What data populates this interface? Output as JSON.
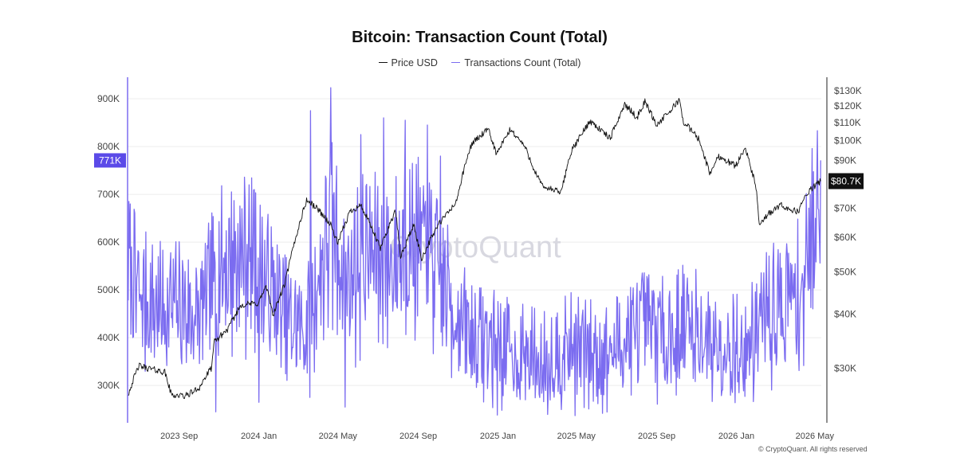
{
  "chart_data": {
    "type": "line",
    "title": "Bitcoin: Transaction Count (Total)",
    "legend": {
      "position": "top-center"
    },
    "series": [
      {
        "name": "Price USD",
        "axis": "right",
        "color": "#111111",
        "points": [
          [
            "2023-06-15",
            26200
          ],
          [
            "2023-07-01",
            30400
          ],
          [
            "2023-07-20",
            29900
          ],
          [
            "2023-08-10",
            29400
          ],
          [
            "2023-08-20",
            26100
          ],
          [
            "2023-09-10",
            25900
          ],
          [
            "2023-10-01",
            27000
          ],
          [
            "2023-10-20",
            30000
          ],
          [
            "2023-10-25",
            34500
          ],
          [
            "2023-11-15",
            37000
          ],
          [
            "2023-12-05",
            42000
          ],
          [
            "2023-12-31",
            42300
          ],
          [
            "2024-01-12",
            46200
          ],
          [
            "2024-01-23",
            39800
          ],
          [
            "2024-02-10",
            47000
          ],
          [
            "2024-02-28",
            61000
          ],
          [
            "2024-03-14",
            73000
          ],
          [
            "2024-04-01",
            69500
          ],
          [
            "2024-04-20",
            64000
          ],
          [
            "2024-05-01",
            58000
          ],
          [
            "2024-05-20",
            69000
          ],
          [
            "2024-06-05",
            71000
          ],
          [
            "2024-07-05",
            56500
          ],
          [
            "2024-07-28",
            69000
          ],
          [
            "2024-08-05",
            54000
          ],
          [
            "2024-08-25",
            64000
          ],
          [
            "2024-09-06",
            53500
          ],
          [
            "2024-09-30",
            63500
          ],
          [
            "2024-10-29",
            72000
          ],
          [
            "2024-11-12",
            88000
          ],
          [
            "2024-11-22",
            98500
          ],
          [
            "2024-12-17",
            106000
          ],
          [
            "2024-12-30",
            93000
          ],
          [
            "2025-01-20",
            106000
          ],
          [
            "2025-02-10",
            97500
          ],
          [
            "2025-02-28",
            84000
          ],
          [
            "2025-03-10",
            78500
          ],
          [
            "2025-04-08",
            76000
          ],
          [
            "2025-04-22",
            93500
          ],
          [
            "2025-05-22",
            111000
          ],
          [
            "2025-06-22",
            101000
          ],
          [
            "2025-07-14",
            121000
          ],
          [
            "2025-08-02",
            113000
          ],
          [
            "2025-08-14",
            123000
          ],
          [
            "2025-09-01",
            108500
          ],
          [
            "2025-09-20",
            116000
          ],
          [
            "2025-10-06",
            124500
          ],
          [
            "2025-10-11",
            111000
          ],
          [
            "2025-11-04",
            101000
          ],
          [
            "2025-11-21",
            84000
          ],
          [
            "2025-12-05",
            92000
          ],
          [
            "2025-12-31",
            87500
          ],
          [
            "2026-01-14",
            96500
          ],
          [
            "2026-02-01",
            77000
          ],
          [
            "2026-02-05",
            63500
          ],
          [
            "2026-02-20",
            68000
          ],
          [
            "2026-03-10",
            71000
          ],
          [
            "2026-04-05",
            68500
          ],
          [
            "2026-04-20",
            76000
          ],
          [
            "2026-05-10",
            80700
          ]
        ]
      },
      {
        "name": "Transactions Count (Total)",
        "axis": "left",
        "color": "#7b6cf0",
        "start": "2023-06-15",
        "end": "2026-05-10",
        "points": [
          [
            "2023-06-15",
            560000
          ],
          [
            "2023-07-01",
            500000
          ],
          [
            "2023-08-01",
            470000
          ],
          [
            "2023-09-01",
            480000
          ],
          [
            "2023-10-01",
            450000
          ],
          [
            "2023-11-01",
            560000
          ],
          [
            "2023-12-15",
            590000
          ],
          [
            "2024-01-15",
            520000
          ],
          [
            "2024-02-15",
            440000
          ],
          [
            "2024-03-15",
            430000
          ],
          [
            "2024-04-20",
            650000
          ],
          [
            "2024-05-15",
            540000
          ],
          [
            "2024-06-15",
            600000
          ],
          [
            "2024-07-15",
            560000
          ],
          [
            "2024-08-15",
            620000
          ],
          [
            "2024-09-15",
            600000
          ],
          [
            "2024-10-15",
            500000
          ],
          [
            "2024-11-15",
            420000
          ],
          [
            "2024-12-15",
            400000
          ],
          [
            "2025-01-15",
            380000
          ],
          [
            "2025-02-15",
            370000
          ],
          [
            "2025-03-15",
            360000
          ],
          [
            "2025-04-15",
            390000
          ],
          [
            "2025-05-15",
            380000
          ],
          [
            "2025-06-15",
            370000
          ],
          [
            "2025-07-15",
            410000
          ],
          [
            "2025-08-15",
            430000
          ],
          [
            "2025-09-15",
            420000
          ],
          [
            "2025-10-15",
            440000
          ],
          [
            "2025-11-15",
            410000
          ],
          [
            "2025-12-15",
            400000
          ],
          [
            "2026-01-15",
            380000
          ],
          [
            "2026-02-15",
            460000
          ],
          [
            "2026-03-15",
            480000
          ],
          [
            "2026-04-15",
            520000
          ],
          [
            "2026-05-10",
            771000
          ]
        ],
        "peaks": [
          [
            "2024-04-20",
            923000
          ],
          [
            "2024-07-10",
            860000
          ],
          [
            "2024-08-12",
            855000
          ],
          [
            "2024-03-20",
            875000
          ],
          [
            "2024-06-05",
            825000
          ],
          [
            "2024-09-15",
            845000
          ],
          [
            "2024-10-05",
            780000
          ],
          [
            "2023-12-25",
            710000
          ],
          [
            "2026-05-05",
            833000
          ],
          [
            "2023-06-20",
            590000
          ]
        ],
        "troughs": [
          [
            "2024-01-01",
            265000
          ],
          [
            "2024-05-12",
            255000
          ],
          [
            "2025-03-06",
            275000
          ],
          [
            "2025-06-03",
            262000
          ],
          [
            "2025-07-24",
            280000
          ],
          [
            "2025-10-01",
            280000
          ],
          [
            "2023-10-27",
            245000
          ],
          [
            "2026-01-05",
            285000
          ]
        ]
      }
    ],
    "left_axis": {
      "range": [
        222000,
        940000
      ],
      "ticks": [
        {
          "value": 300000,
          "label": "300K"
        },
        {
          "value": 400000,
          "label": "400K"
        },
        {
          "value": 500000,
          "label": "500K"
        },
        {
          "value": 600000,
          "label": "600K"
        },
        {
          "value": 700000,
          "label": "700K"
        },
        {
          "value": 800000,
          "label": "800K"
        },
        {
          "value": 900000,
          "label": "900K"
        }
      ],
      "current_label": "771K",
      "current_value": 771000,
      "current_color": "#5b4ae8"
    },
    "right_axis": {
      "scale": "log",
      "range": [
        22500,
        138000
      ],
      "ticks": [
        {
          "value": 30000,
          "label": "$30K"
        },
        {
          "value": 40000,
          "label": "$40K"
        },
        {
          "value": 50000,
          "label": "$50K"
        },
        {
          "value": 60000,
          "label": "$60K"
        },
        {
          "value": 70000,
          "label": "$70K"
        },
        {
          "value": 90000,
          "label": "$90K"
        },
        {
          "value": 100000,
          "label": "$100K"
        },
        {
          "value": 110000,
          "label": "$110K"
        },
        {
          "value": 120000,
          "label": "$120K"
        },
        {
          "value": 130000,
          "label": "$130K"
        }
      ],
      "current_label": "$80.7K",
      "current_value": 80700
    },
    "x_axis": {
      "range": [
        "2023-06-14",
        "2026-05-11"
      ],
      "ticks": [
        {
          "date": "2023-09-01",
          "label": "2023 Sep"
        },
        {
          "date": "2024-01-01",
          "label": "2024 Jan"
        },
        {
          "date": "2024-05-01",
          "label": "2024 May"
        },
        {
          "date": "2024-09-01",
          "label": "2024 Sep"
        },
        {
          "date": "2025-01-01",
          "label": "2025 Jan"
        },
        {
          "date": "2025-05-01",
          "label": "2025 May"
        },
        {
          "date": "2025-09-01",
          "label": "2025 Sep"
        },
        {
          "date": "2026-01-01",
          "label": "2026 Jan"
        },
        {
          "date": "2026-05-01",
          "label": "2026 May"
        }
      ]
    },
    "grid": true,
    "watermark": "CryptoQuant"
  },
  "legend_labels": {
    "price": "Price USD",
    "tx": "Transactions Count (Total)"
  },
  "colors": {
    "price": "#111111",
    "tx": "#7b6cf0",
    "badge": "#5b4ae8",
    "grid": "#ececec"
  },
  "footer": {
    "copyright": "© CryptoQuant. All rights reserved"
  }
}
